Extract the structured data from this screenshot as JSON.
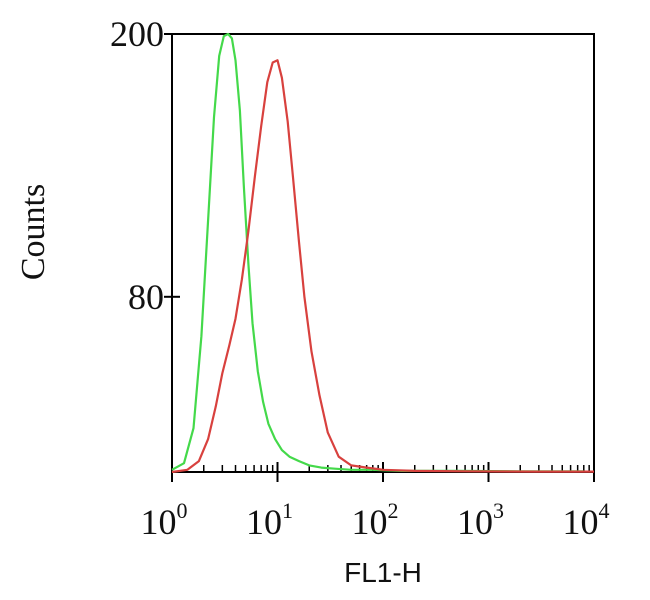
{
  "chart_data": {
    "type": "line",
    "xlabel": "FL1-H",
    "ylabel": "Counts",
    "x_scale": "log",
    "xlim": [
      1,
      10000
    ],
    "ylim": [
      0,
      200
    ],
    "x_ticks": [
      {
        "value": 1,
        "base": "10",
        "exp": "0"
      },
      {
        "value": 10,
        "base": "10",
        "exp": "1"
      },
      {
        "value": 100,
        "base": "10",
        "exp": "2"
      },
      {
        "value": 1000,
        "base": "10",
        "exp": "3"
      },
      {
        "value": 10000,
        "base": "10",
        "exp": "4"
      }
    ],
    "y_ticks": [
      {
        "value": 200,
        "label": "200"
      },
      {
        "value": 80,
        "label": "80"
      }
    ],
    "grid": false,
    "series": [
      {
        "color": "#44d94a",
        "x": [
          1.0,
          1.3,
          1.6,
          1.9,
          2.2,
          2.5,
          2.8,
          3.1,
          3.4,
          3.7,
          4.0,
          4.4,
          4.8,
          5.3,
          5.8,
          6.5,
          7.3,
          8.2,
          9.5,
          11,
          13,
          16,
          20,
          26,
          35,
          50,
          80,
          150,
          500,
          2000,
          8000
        ],
        "y": [
          1,
          4,
          20,
          62,
          115,
          162,
          190,
          199,
          200,
          198,
          188,
          165,
          130,
          95,
          68,
          46,
          32,
          22,
          15,
          10,
          7,
          5,
          3,
          2,
          1.5,
          1,
          1,
          0.5,
          0.5,
          0.3,
          0.3
        ]
      },
      {
        "color": "#d8413e",
        "x": [
          1.0,
          1.4,
          1.8,
          2.2,
          2.6,
          3.0,
          3.5,
          4.0,
          4.6,
          5.3,
          6.1,
          7.0,
          8.0,
          9.0,
          10.0,
          11.0,
          12.5,
          14,
          16,
          18,
          21,
          25,
          30,
          38,
          50,
          70,
          100,
          200,
          600,
          3000,
          10000
        ],
        "y": [
          0,
          1,
          5,
          15,
          30,
          45,
          58,
          70,
          88,
          110,
          135,
          158,
          178,
          187,
          188,
          180,
          160,
          135,
          105,
          80,
          55,
          35,
          18,
          7,
          3,
          2,
          1,
          0.5,
          0.3,
          0.2,
          0.2
        ]
      }
    ]
  }
}
